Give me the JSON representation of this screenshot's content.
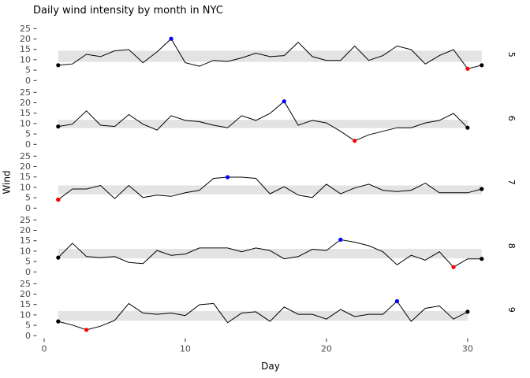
{
  "chart_data": {
    "type": "line",
    "title": "Daily wind intensity by month in NYC",
    "xlabel": "Day",
    "ylabel": "Wind",
    "x_ticks": [
      0,
      10,
      20,
      30
    ],
    "y_ticks": [
      0,
      5,
      10,
      15,
      20,
      25
    ],
    "xlim": [
      -0.5,
      32.5
    ],
    "ylim_per_facet": [
      -1.25,
      26.25
    ],
    "grid": "off",
    "legend": "none",
    "facet_variable": "month",
    "facets": [
      {
        "label": "5",
        "first_day": 1,
        "wind": [
          7.4,
          8.0,
          12.6,
          11.5,
          14.3,
          14.9,
          8.6,
          13.8,
          20.1,
          8.6,
          6.9,
          9.7,
          9.2,
          10.9,
          13.2,
          11.5,
          12.0,
          18.4,
          11.5,
          9.7,
          9.7,
          16.6,
          9.7,
          12.0,
          16.6,
          14.9,
          8.0,
          12.0,
          14.9,
          5.7,
          7.4
        ],
        "band": [
          9.0,
          14.4
        ],
        "max_day": 9,
        "max_value": 20.1,
        "min_day": 30,
        "min_value": 5.7
      },
      {
        "label": "6",
        "first_day": 1,
        "wind": [
          8.6,
          9.7,
          16.1,
          9.2,
          8.6,
          14.3,
          9.7,
          6.9,
          13.8,
          11.5,
          10.9,
          9.2,
          8.0,
          13.8,
          11.5,
          14.9,
          20.7,
          9.2,
          11.5,
          10.3,
          6.3,
          1.7,
          4.6,
          6.3,
          8.0,
          8.0,
          10.3,
          11.5,
          14.9,
          8.0
        ],
        "band": [
          7.8,
          11.8
        ],
        "max_day": 17,
        "max_value": 20.7,
        "min_day": 22,
        "min_value": 1.7
      },
      {
        "label": "7",
        "first_day": 1,
        "wind": [
          4.1,
          9.2,
          9.2,
          10.9,
          4.6,
          10.9,
          5.1,
          6.3,
          5.7,
          7.4,
          8.6,
          14.3,
          14.9,
          14.9,
          14.3,
          6.9,
          10.3,
          6.3,
          5.1,
          11.5,
          6.9,
          9.7,
          11.5,
          8.6,
          8.0,
          8.6,
          12.0,
          7.4,
          7.4,
          7.4,
          9.2
        ],
        "band": [
          6.6,
          10.9
        ],
        "max_day": 13,
        "max_value": 14.9,
        "min_day": 1,
        "min_value": 4.1
      },
      {
        "label": "8",
        "first_day": 1,
        "wind": [
          6.9,
          13.8,
          7.4,
          6.9,
          7.4,
          4.6,
          4.0,
          10.3,
          8.0,
          8.6,
          11.5,
          11.5,
          11.5,
          9.7,
          11.5,
          10.3,
          6.3,
          7.4,
          10.9,
          10.3,
          15.5,
          14.3,
          12.6,
          9.7,
          3.4,
          8.0,
          5.7,
          9.7,
          2.3,
          6.3,
          6.3
        ],
        "band": [
          6.5,
          11.1
        ],
        "max_day": 21,
        "max_value": 15.5,
        "min_day": 29,
        "min_value": 2.3
      },
      {
        "label": "9",
        "first_day": 1,
        "wind": [
          6.9,
          5.1,
          2.8,
          4.6,
          7.4,
          15.5,
          10.9,
          10.3,
          10.9,
          9.7,
          14.9,
          15.5,
          6.3,
          10.9,
          11.5,
          6.9,
          13.8,
          10.3,
          10.3,
          8.0,
          12.6,
          9.2,
          10.3,
          10.3,
          16.6,
          6.9,
          13.2,
          14.3,
          8.0,
          11.5
        ],
        "band": [
          7.2,
          11.9
        ],
        "max_day": 25,
        "max_value": 16.6,
        "min_day": 3,
        "min_value": 2.8
      }
    ],
    "colors": {
      "line": "#000000",
      "endpoint": "#000000",
      "max_point": "#0000ff",
      "min_point": "#ff0000",
      "band": "#e3e3e3",
      "axis_text": "#4d4d4d",
      "tick": "#333333",
      "strip_text": "#000000",
      "background": "#ffffff"
    }
  }
}
